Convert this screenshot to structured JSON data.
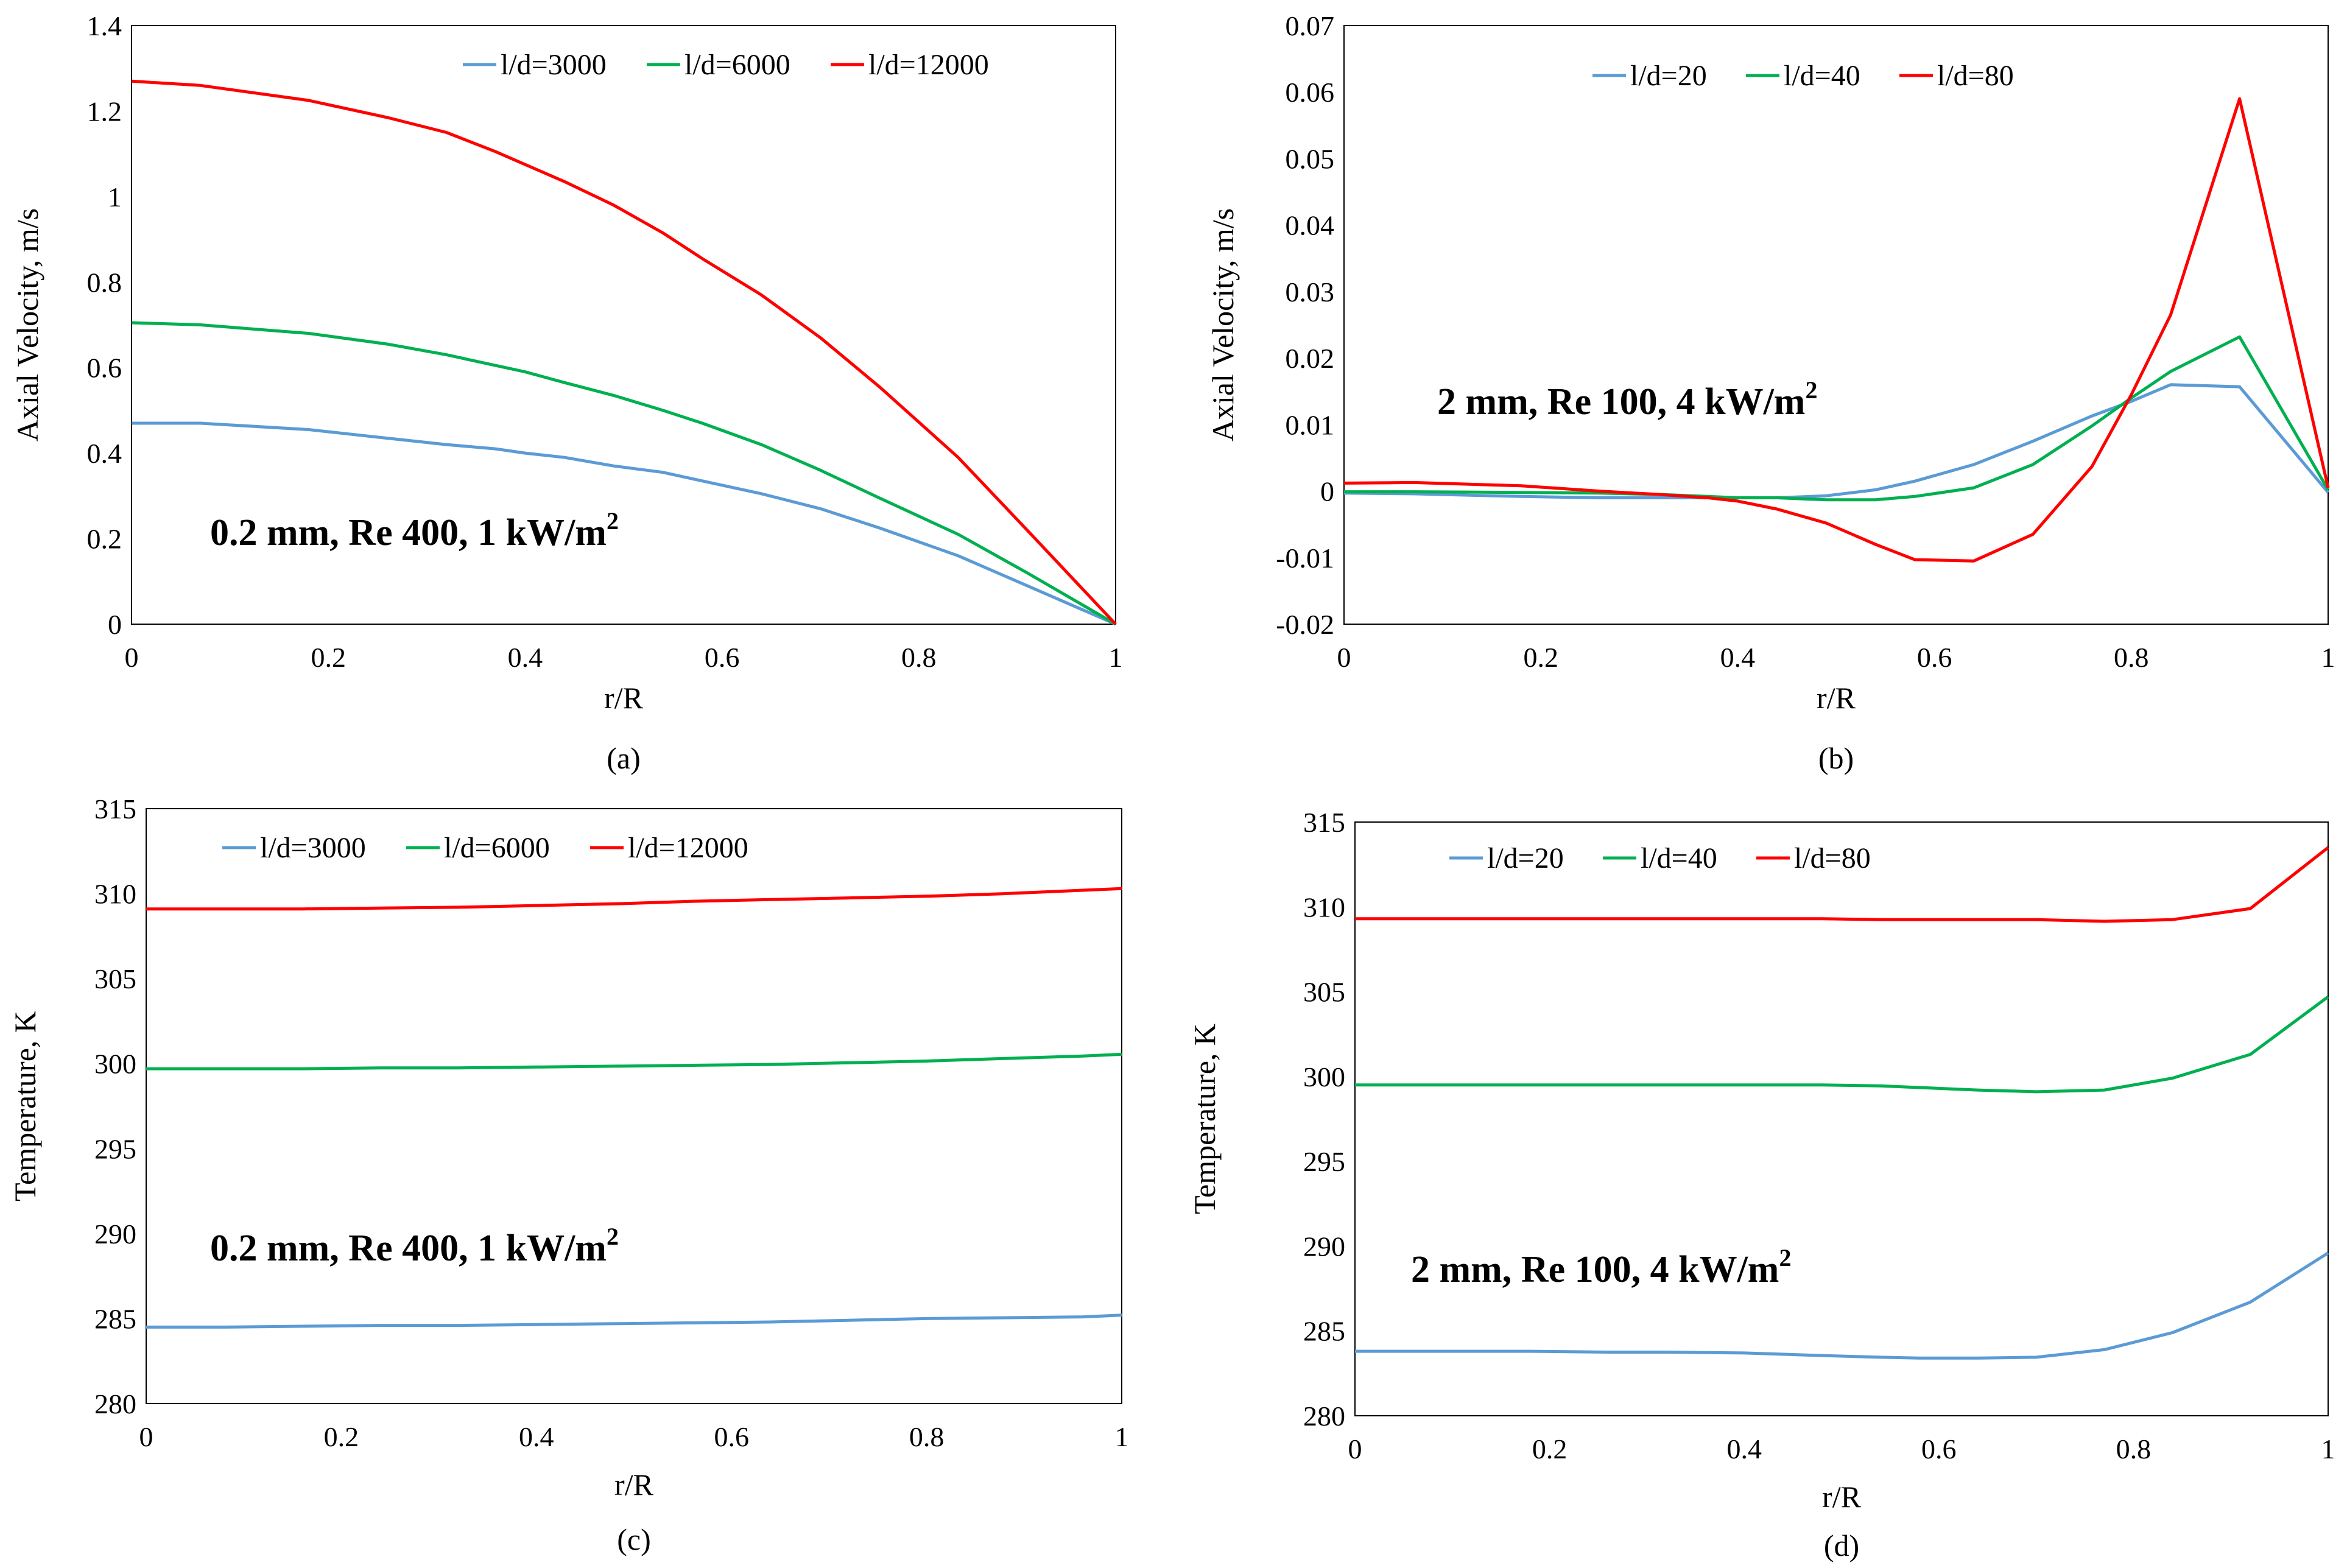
{
  "chart_data": [
    {
      "type": "line",
      "panel_label": "(a)",
      "xlabel": "r/R",
      "ylabel": "Axial Velocity, m/s",
      "xlim": [
        0,
        1
      ],
      "ylim": [
        0,
        1.4
      ],
      "xticks": [
        "0",
        "0.2",
        "0.4",
        "0.6",
        "0.8",
        "1"
      ],
      "yticks": [
        "0",
        "0.2",
        "0.4",
        "0.6",
        "0.8",
        "1",
        "1.2",
        "1.4"
      ],
      "annotation": {
        "text": "0.2 mm, Re 400, 1 kW/m",
        "sup": "2"
      },
      "legend_position": "top-right",
      "series": [
        {
          "name": "l/d=3000",
          "color": "#5b9bd5",
          "x": [
            0,
            0.07,
            0.18,
            0.26,
            0.32,
            0.37,
            0.4,
            0.44,
            0.49,
            0.54,
            0.58,
            0.64,
            0.7,
            0.76,
            0.84,
            0.91,
            1
          ],
          "y": [
            0.47,
            0.47,
            0.455,
            0.435,
            0.42,
            0.41,
            0.4,
            0.39,
            0.37,
            0.355,
            0.335,
            0.305,
            0.27,
            0.225,
            0.16,
            0.09,
            0
          ]
        },
        {
          "name": "l/d=6000",
          "color": "#00b050",
          "x": [
            0,
            0.07,
            0.18,
            0.26,
            0.32,
            0.37,
            0.4,
            0.44,
            0.49,
            0.54,
            0.58,
            0.64,
            0.7,
            0.76,
            0.84,
            0.91,
            1
          ],
          "y": [
            0.705,
            0.7,
            0.68,
            0.655,
            0.63,
            0.605,
            0.59,
            0.565,
            0.535,
            0.5,
            0.47,
            0.42,
            0.36,
            0.295,
            0.21,
            0.12,
            0
          ]
        },
        {
          "name": "l/d=12000",
          "color": "#ff0000",
          "x": [
            0,
            0.07,
            0.18,
            0.26,
            0.32,
            0.37,
            0.4,
            0.44,
            0.49,
            0.54,
            0.58,
            0.64,
            0.7,
            0.76,
            0.84,
            0.91,
            1
          ],
          "y": [
            1.27,
            1.26,
            1.225,
            1.185,
            1.15,
            1.105,
            1.075,
            1.035,
            0.98,
            0.915,
            0.855,
            0.77,
            0.67,
            0.555,
            0.39,
            0.22,
            0
          ]
        }
      ]
    },
    {
      "type": "line",
      "panel_label": "(b)",
      "xlabel": "r/R",
      "ylabel": "Axial Velocity, m/s",
      "xlim": [
        0,
        1
      ],
      "ylim": [
        -0.02,
        0.07
      ],
      "xticks": [
        "0",
        "0.2",
        "0.4",
        "0.6",
        "0.8",
        "1"
      ],
      "yticks": [
        "-0.02",
        "-0.01",
        "0",
        "0.01",
        "0.02",
        "0.03",
        "0.04",
        "0.05",
        "0.06",
        "0.07"
      ],
      "annotation": {
        "text": "2 mm, Re 100, 4 kW/m",
        "sup": "2"
      },
      "legend_position": "top-center",
      "series": [
        {
          "name": "l/d=20",
          "color": "#5b9bd5",
          "x": [
            0,
            0.07,
            0.18,
            0.26,
            0.32,
            0.37,
            0.4,
            0.44,
            0.49,
            0.54,
            0.58,
            0.64,
            0.7,
            0.76,
            0.8,
            0.84,
            0.91,
            1
          ],
          "y": [
            -0.0003,
            -0.0004,
            -0.0008,
            -0.001,
            -0.001,
            -0.001,
            -0.001,
            -0.001,
            -0.0007,
            0.0002,
            0.0015,
            0.004,
            0.0075,
            0.0113,
            0.0135,
            0.016,
            0.0157,
            -0.0002
          ]
        },
        {
          "name": "l/d=40",
          "color": "#00b050",
          "x": [
            0,
            0.07,
            0.18,
            0.26,
            0.32,
            0.37,
            0.4,
            0.44,
            0.49,
            0.54,
            0.58,
            0.64,
            0.7,
            0.76,
            0.8,
            0.84,
            0.91,
            1
          ],
          "y": [
            -0.0001,
            -0.0001,
            -0.0002,
            -0.0003,
            -0.0005,
            -0.0008,
            -0.001,
            -0.001,
            -0.0013,
            -0.0013,
            -0.0008,
            0.0005,
            0.004,
            0.0098,
            0.014,
            0.018,
            0.0232,
            0.0002
          ]
        },
        {
          "name": "l/d=80",
          "color": "#ff0000",
          "x": [
            0,
            0.07,
            0.18,
            0.26,
            0.32,
            0.37,
            0.4,
            0.44,
            0.49,
            0.54,
            0.58,
            0.64,
            0.7,
            0.76,
            0.8,
            0.84,
            0.91,
            1
          ],
          "y": [
            0.0012,
            0.0013,
            0.0008,
            0.0,
            -0.0005,
            -0.001,
            -0.0015,
            -0.0027,
            -0.0048,
            -0.008,
            -0.0103,
            -0.0105,
            -0.0065,
            0.0037,
            0.0145,
            0.0265,
            0.059,
            0.0005
          ]
        }
      ]
    },
    {
      "type": "line",
      "panel_label": "(c)",
      "xlabel": "r/R",
      "ylabel": "Temperature, K",
      "xlim": [
        0,
        1
      ],
      "ylim": [
        280,
        315
      ],
      "xticks": [
        "0",
        "0.2",
        "0.4",
        "0.6",
        "0.8",
        "1"
      ],
      "yticks": [
        "280",
        "285",
        "290",
        "295",
        "300",
        "305",
        "310",
        "315"
      ],
      "annotation": {
        "text": "0.2 mm, Re 400, 1 kW/m",
        "sup": "2"
      },
      "legend_position": "top-left",
      "series": [
        {
          "name": "l/d=3000",
          "color": "#5b9bd5",
          "x": [
            0,
            0.08,
            0.16,
            0.24,
            0.32,
            0.4,
            0.48,
            0.56,
            0.64,
            0.72,
            0.8,
            0.88,
            0.96,
            1
          ],
          "y": [
            284.5,
            284.5,
            284.55,
            284.6,
            284.6,
            284.65,
            284.7,
            284.75,
            284.8,
            284.9,
            285.0,
            285.05,
            285.1,
            285.2
          ]
        },
        {
          "name": "l/d=6000",
          "color": "#00b050",
          "x": [
            0,
            0.08,
            0.16,
            0.24,
            0.32,
            0.4,
            0.48,
            0.56,
            0.64,
            0.72,
            0.8,
            0.88,
            0.96,
            1
          ],
          "y": [
            299.7,
            299.7,
            299.7,
            299.75,
            299.75,
            299.8,
            299.85,
            299.9,
            299.95,
            300.05,
            300.15,
            300.3,
            300.45,
            300.55
          ]
        },
        {
          "name": "l/d=12000",
          "color": "#ff0000",
          "x": [
            0,
            0.08,
            0.16,
            0.24,
            0.32,
            0.4,
            0.48,
            0.56,
            0.64,
            0.72,
            0.8,
            0.88,
            0.96,
            1
          ],
          "y": [
            309.1,
            309.1,
            309.1,
            309.15,
            309.2,
            309.3,
            309.4,
            309.55,
            309.65,
            309.75,
            309.85,
            310.0,
            310.2,
            310.3
          ]
        }
      ]
    },
    {
      "type": "line",
      "panel_label": "(d)",
      "xlabel": "r/R",
      "ylabel": "Temperature, K",
      "xlim": [
        0,
        1
      ],
      "ylim": [
        280,
        315
      ],
      "xticks": [
        "0",
        "0.2",
        "0.4",
        "0.6",
        "0.8",
        "1"
      ],
      "yticks": [
        "280",
        "285",
        "290",
        "295",
        "300",
        "305",
        "310",
        "315"
      ],
      "annotation": {
        "text": "2 mm, Re 100, 4 kW/m",
        "sup": "2"
      },
      "legend_position": "top-left",
      "series": [
        {
          "name": "l/d=20",
          "color": "#5b9bd5",
          "x": [
            0,
            0.1,
            0.18,
            0.26,
            0.32,
            0.4,
            0.48,
            0.54,
            0.58,
            0.64,
            0.7,
            0.77,
            0.84,
            0.92,
            1
          ],
          "y": [
            283.8,
            283.8,
            283.8,
            283.75,
            283.75,
            283.7,
            283.55,
            283.45,
            283.4,
            283.4,
            283.45,
            283.9,
            284.9,
            286.7,
            289.6
          ]
        },
        {
          "name": "l/d=40",
          "color": "#00b050",
          "x": [
            0,
            0.1,
            0.18,
            0.26,
            0.32,
            0.4,
            0.48,
            0.54,
            0.58,
            0.64,
            0.7,
            0.77,
            0.84,
            0.92,
            1
          ],
          "y": [
            299.5,
            299.5,
            299.5,
            299.5,
            299.5,
            299.5,
            299.5,
            299.45,
            299.35,
            299.2,
            299.1,
            299.2,
            299.9,
            301.3,
            304.7
          ]
        },
        {
          "name": "l/d=80",
          "color": "#ff0000",
          "x": [
            0,
            0.1,
            0.18,
            0.26,
            0.32,
            0.4,
            0.48,
            0.54,
            0.58,
            0.64,
            0.7,
            0.77,
            0.84,
            0.92,
            1
          ],
          "y": [
            309.3,
            309.3,
            309.3,
            309.3,
            309.3,
            309.3,
            309.3,
            309.25,
            309.25,
            309.25,
            309.25,
            309.15,
            309.25,
            309.9,
            313.5
          ]
        }
      ]
    }
  ]
}
